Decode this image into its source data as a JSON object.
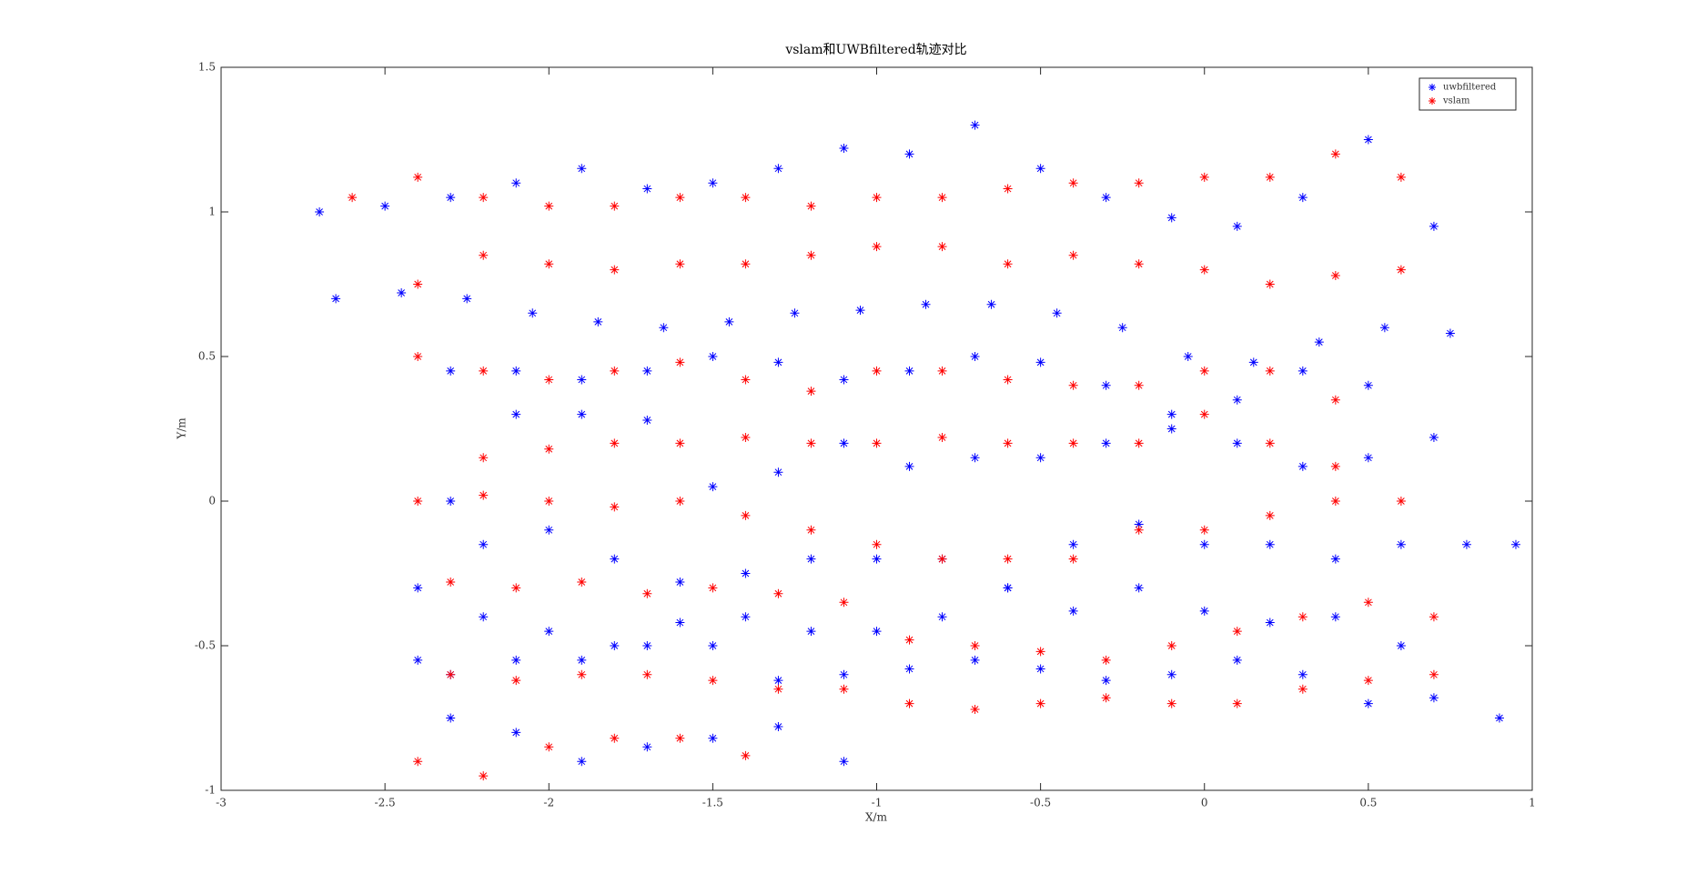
{
  "chart_data": {
    "type": "scatter",
    "title": "vslam和UWBfiltered轨迹对比",
    "x_label": "X/m",
    "y_label": "Y/m",
    "xlim": [
      -3,
      1
    ],
    "xticks": [
      -3,
      -2.5,
      -2,
      -1.5,
      -1,
      -0.5,
      0,
      0.5,
      1
    ],
    "ylim": [
      -1,
      1.5
    ],
    "yticks": [
      -1,
      -0.5,
      0,
      0.5,
      1,
      1.5
    ],
    "grid": false,
    "legend": "upper right",
    "marker": "*",
    "series": [
      {
        "name": "uwbfiltered",
        "color": "#0000ff",
        "x": [
          -2.7,
          -2.5,
          -2.3,
          -2.1,
          -1.9,
          -1.7,
          -1.5,
          -1.3,
          -1.1,
          -0.9,
          -0.7,
          -0.5,
          -0.3,
          -0.1,
          0.1,
          0.3,
          0.5,
          0.7,
          0.75,
          0.55,
          0.35,
          0.15,
          -0.05,
          -0.25,
          -0.45,
          -0.65,
          -0.85,
          -1.05,
          -1.25,
          -1.45,
          -1.65,
          -1.85,
          -2.05,
          -2.25,
          -2.45,
          -2.65,
          -2.3,
          -2.1,
          -1.9,
          -1.7,
          -1.5,
          -1.3,
          -1.1,
          -0.9,
          -0.7,
          -0.5,
          -0.3,
          -0.1,
          0.1,
          0.3,
          0.5,
          0.7,
          0.5,
          0.3,
          0.1,
          -0.1,
          -0.3,
          -0.5,
          -0.7,
          -0.9,
          -1.1,
          -1.3,
          -1.5,
          -1.7,
          -1.9,
          -2.1,
          -2.3,
          -2.4,
          -2.2,
          -2.0,
          -1.8,
          -1.6,
          -1.4,
          -1.2,
          -1.0,
          -0.8,
          -0.6,
          -0.4,
          -0.2,
          0.0,
          0.2,
          0.4,
          0.6,
          0.8,
          0.95,
          0.6,
          0.4,
          0.2,
          0.0,
          -0.2,
          -0.4,
          -0.6,
          -0.8,
          -1.0,
          -1.2,
          -1.4,
          -1.6,
          -1.8,
          -2.0,
          -2.2,
          -2.4,
          -2.3,
          -2.1,
          -1.9,
          -1.7,
          -1.5,
          -1.3,
          -1.1,
          -0.9,
          -0.7,
          -0.5,
          -0.3,
          -0.1,
          0.1,
          0.3,
          0.5,
          0.7,
          0.9,
          -2.3,
          -2.1,
          -1.9,
          -1.7,
          -1.5,
          -1.3,
          -1.1
        ],
        "y": [
          1.0,
          1.02,
          1.05,
          1.1,
          1.15,
          1.08,
          1.1,
          1.15,
          1.22,
          1.2,
          1.3,
          1.15,
          1.05,
          0.98,
          0.95,
          1.05,
          1.25,
          0.95,
          0.58,
          0.6,
          0.55,
          0.48,
          0.5,
          0.6,
          0.65,
          0.68,
          0.68,
          0.66,
          0.65,
          0.62,
          0.6,
          0.62,
          0.65,
          0.7,
          0.72,
          0.7,
          0.45,
          0.45,
          0.42,
          0.45,
          0.5,
          0.48,
          0.42,
          0.45,
          0.5,
          0.48,
          0.4,
          0.3,
          0.35,
          0.45,
          0.4,
          0.22,
          0.15,
          0.12,
          0.2,
          0.25,
          0.2,
          0.15,
          0.15,
          0.12,
          0.2,
          0.1,
          0.05,
          0.28,
          0.3,
          0.3,
          0.0,
          -0.3,
          -0.15,
          -0.1,
          -0.2,
          -0.28,
          -0.25,
          -0.2,
          -0.2,
          -0.2,
          -0.3,
          -0.15,
          -0.08,
          -0.15,
          -0.15,
          -0.2,
          -0.15,
          -0.15,
          -0.15,
          -0.5,
          -0.4,
          -0.42,
          -0.38,
          -0.3,
          -0.38,
          -0.3,
          -0.4,
          -0.45,
          -0.45,
          -0.4,
          -0.42,
          -0.5,
          -0.45,
          -0.4,
          -0.55,
          -0.6,
          -0.55,
          -0.55,
          -0.5,
          -0.5,
          -0.62,
          -0.6,
          -0.58,
          -0.55,
          -0.58,
          -0.62,
          -0.6,
          -0.55,
          -0.6,
          -0.7,
          -0.68,
          -0.75,
          -0.75,
          -0.8,
          -0.9,
          -0.85,
          -0.82,
          -0.78,
          -0.9
        ]
      },
      {
        "name": "vslam",
        "color": "#ff0000",
        "x": [
          -2.6,
          -2.4,
          -2.2,
          -2.0,
          -1.8,
          -1.6,
          -1.4,
          -1.2,
          -1.0,
          -0.8,
          -0.6,
          -0.4,
          -0.2,
          0.0,
          0.2,
          0.4,
          0.6,
          0.6,
          0.4,
          0.2,
          0.0,
          -0.2,
          -0.4,
          -0.6,
          -0.8,
          -1.0,
          -1.2,
          -1.4,
          -1.6,
          -1.8,
          -2.0,
          -2.2,
          -2.4,
          -2.4,
          -2.2,
          -2.0,
          -1.8,
          -1.6,
          -1.4,
          -1.2,
          -1.0,
          -0.8,
          -0.6,
          -0.4,
          -0.2,
          0.0,
          0.2,
          0.4,
          0.4,
          0.2,
          0.0,
          -0.2,
          -0.4,
          -0.6,
          -0.8,
          -1.0,
          -1.2,
          -1.4,
          -1.6,
          -1.8,
          -2.0,
          -2.2,
          -2.4,
          -2.2,
          -2.0,
          -1.8,
          -1.6,
          -1.4,
          -1.2,
          -1.0,
          -0.8,
          -0.6,
          -0.4,
          -0.2,
          0.0,
          0.2,
          0.4,
          0.6,
          0.7,
          0.5,
          0.3,
          0.1,
          -0.1,
          -0.3,
          -0.5,
          -0.7,
          -0.9,
          -1.1,
          -1.3,
          -1.5,
          -1.7,
          -1.9,
          -2.1,
          -2.3,
          -2.3,
          -2.1,
          -1.9,
          -1.7,
          -1.5,
          -1.3,
          -1.1,
          -0.9,
          -0.7,
          -0.5,
          -0.3,
          -0.1,
          0.1,
          0.3,
          0.5,
          0.7,
          -2.4,
          -2.2,
          -2.0,
          -1.8,
          -1.6,
          -1.4
        ],
        "y": [
          1.05,
          1.12,
          1.05,
          1.02,
          1.02,
          1.05,
          1.05,
          1.02,
          1.05,
          1.05,
          1.08,
          1.1,
          1.1,
          1.12,
          1.12,
          1.2,
          1.12,
          0.8,
          0.78,
          0.75,
          0.8,
          0.82,
          0.85,
          0.82,
          0.88,
          0.88,
          0.85,
          0.82,
          0.82,
          0.8,
          0.82,
          0.85,
          0.75,
          0.5,
          0.45,
          0.42,
          0.45,
          0.48,
          0.42,
          0.38,
          0.45,
          0.45,
          0.42,
          0.4,
          0.4,
          0.45,
          0.45,
          0.35,
          0.12,
          0.2,
          0.3,
          0.2,
          0.2,
          0.2,
          0.22,
          0.2,
          0.2,
          0.22,
          0.2,
          0.2,
          0.18,
          0.15,
          0.0,
          0.02,
          0.0,
          -0.02,
          0.0,
          -0.05,
          -0.1,
          -0.15,
          -0.2,
          -0.2,
          -0.2,
          -0.1,
          -0.1,
          -0.05,
          0.0,
          0.0,
          -0.4,
          -0.35,
          -0.4,
          -0.45,
          -0.5,
          -0.55,
          -0.52,
          -0.5,
          -0.48,
          -0.35,
          -0.32,
          -0.3,
          -0.32,
          -0.28,
          -0.3,
          -0.28,
          -0.6,
          -0.62,
          -0.6,
          -0.6,
          -0.62,
          -0.65,
          -0.65,
          -0.7,
          -0.72,
          -0.7,
          -0.68,
          -0.7,
          -0.7,
          -0.65,
          -0.62,
          -0.6,
          -0.9,
          -0.95,
          -0.85,
          -0.82,
          -0.82,
          -0.88
        ]
      }
    ]
  }
}
